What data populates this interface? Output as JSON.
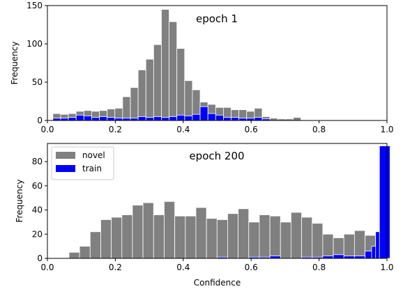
{
  "chart_data": [
    {
      "type": "bar",
      "title": "epoch 1",
      "xlabel": "",
      "ylabel": "Frequency",
      "xlim": [
        0.0,
        1.0
      ],
      "ylim": [
        0,
        150
      ],
      "xticks": [
        "0.0",
        "0.2",
        "0.4",
        "0.6",
        "0.8",
        "1.0"
      ],
      "xtick_values": [
        0.0,
        0.2,
        0.4,
        0.6,
        0.8,
        1.0
      ],
      "yticks": [
        "0",
        "50",
        "100",
        "150"
      ],
      "ytick_values": [
        0,
        50,
        100,
        150
      ],
      "legend": false,
      "bin_width": 0.02282,
      "series": [
        {
          "name": "novel",
          "color": "#808080",
          "bins": [
            {
              "x": 0.0275,
              "y": 9
            },
            {
              "x": 0.0503,
              "y": 8
            },
            {
              "x": 0.0731,
              "y": 9
            },
            {
              "x": 0.096,
              "y": 12
            },
            {
              "x": 0.1188,
              "y": 13
            },
            {
              "x": 0.1416,
              "y": 12
            },
            {
              "x": 0.1645,
              "y": 13
            },
            {
              "x": 0.1873,
              "y": 15
            },
            {
              "x": 0.2101,
              "y": 16
            },
            {
              "x": 0.2329,
              "y": 31
            },
            {
              "x": 0.2558,
              "y": 43
            },
            {
              "x": 0.2786,
              "y": 66
            },
            {
              "x": 0.3014,
              "y": 80
            },
            {
              "x": 0.3243,
              "y": 99
            },
            {
              "x": 0.3471,
              "y": 145
            },
            {
              "x": 0.3699,
              "y": 129
            },
            {
              "x": 0.3927,
              "y": 94
            },
            {
              "x": 0.4156,
              "y": 52
            },
            {
              "x": 0.4384,
              "y": 40
            },
            {
              "x": 0.4612,
              "y": 24
            },
            {
              "x": 0.4841,
              "y": 21
            },
            {
              "x": 0.5069,
              "y": 17
            },
            {
              "x": 0.5297,
              "y": 17
            },
            {
              "x": 0.5525,
              "y": 14
            },
            {
              "x": 0.5754,
              "y": 14
            },
            {
              "x": 0.5982,
              "y": 12
            },
            {
              "x": 0.621,
              "y": 16
            },
            {
              "x": 0.6438,
              "y": 5
            },
            {
              "x": 0.6667,
              "y": 3
            },
            {
              "x": 0.6895,
              "y": 2
            },
            {
              "x": 0.7123,
              "y": 2
            },
            {
              "x": 0.7352,
              "y": 4
            }
          ]
        },
        {
          "name": "train",
          "color": "#0000ff",
          "bins": [
            {
              "x": 0.0275,
              "y": 3
            },
            {
              "x": 0.0503,
              "y": 3
            },
            {
              "x": 0.0731,
              "y": 4
            },
            {
              "x": 0.096,
              "y": 7
            },
            {
              "x": 0.1188,
              "y": 6
            },
            {
              "x": 0.1416,
              "y": 4
            },
            {
              "x": 0.1645,
              "y": 5
            },
            {
              "x": 0.1873,
              "y": 4
            },
            {
              "x": 0.2101,
              "y": 3
            },
            {
              "x": 0.2329,
              "y": 3
            },
            {
              "x": 0.2558,
              "y": 3
            },
            {
              "x": 0.2786,
              "y": 5
            },
            {
              "x": 0.3014,
              "y": 4
            },
            {
              "x": 0.3243,
              "y": 5
            },
            {
              "x": 0.3471,
              "y": 4
            },
            {
              "x": 0.3699,
              "y": 5
            },
            {
              "x": 0.3927,
              "y": 7
            },
            {
              "x": 0.4156,
              "y": 6
            },
            {
              "x": 0.4384,
              "y": 8
            },
            {
              "x": 0.4612,
              "y": 18
            },
            {
              "x": 0.4841,
              "y": 9
            },
            {
              "x": 0.5069,
              "y": 7
            },
            {
              "x": 0.5297,
              "y": 4
            },
            {
              "x": 0.5525,
              "y": 4
            },
            {
              "x": 0.5754,
              "y": 3
            },
            {
              "x": 0.5982,
              "y": 3
            },
            {
              "x": 0.621,
              "y": 4
            },
            {
              "x": 0.6438,
              "y": 2
            }
          ]
        }
      ]
    },
    {
      "type": "bar",
      "title": "epoch 200",
      "xlabel": "Confidence",
      "ylabel": "Frequency",
      "xlim": [
        0.0,
        1.0
      ],
      "ylim": [
        0,
        95
      ],
      "xticks": [
        "0.0",
        "0.2",
        "0.4",
        "0.6",
        "0.8",
        "1.0"
      ],
      "xtick_values": [
        0.0,
        0.2,
        0.4,
        0.6,
        0.8,
        1.0
      ],
      "yticks": [
        "0",
        "20",
        "40",
        "60",
        "80"
      ],
      "ytick_values": [
        0,
        20,
        40,
        60,
        80
      ],
      "legend": true,
      "legend_position": "top-left",
      "bin_width": 0.03114,
      "series": [
        {
          "name": "novel",
          "color": "#808080",
          "bins": [
            {
              "x": 0.0792,
              "y": 5
            },
            {
              "x": 0.1103,
              "y": 10
            },
            {
              "x": 0.1414,
              "y": 22
            },
            {
              "x": 0.1726,
              "y": 32
            },
            {
              "x": 0.2037,
              "y": 34
            },
            {
              "x": 0.2349,
              "y": 36
            },
            {
              "x": 0.266,
              "y": 44
            },
            {
              "x": 0.2971,
              "y": 46
            },
            {
              "x": 0.3283,
              "y": 36
            },
            {
              "x": 0.3594,
              "y": 47
            },
            {
              "x": 0.3906,
              "y": 35
            },
            {
              "x": 0.4217,
              "y": 35
            },
            {
              "x": 0.4528,
              "y": 42
            },
            {
              "x": 0.484,
              "y": 33
            },
            {
              "x": 0.5151,
              "y": 32
            },
            {
              "x": 0.5462,
              "y": 37
            },
            {
              "x": 0.5774,
              "y": 41
            },
            {
              "x": 0.6085,
              "y": 30
            },
            {
              "x": 0.6396,
              "y": 36
            },
            {
              "x": 0.6708,
              "y": 35
            },
            {
              "x": 0.7019,
              "y": 30
            },
            {
              "x": 0.733,
              "y": 38
            },
            {
              "x": 0.7642,
              "y": 34
            },
            {
              "x": 0.7953,
              "y": 29
            },
            {
              "x": 0.8264,
              "y": 20
            },
            {
              "x": 0.8576,
              "y": 17
            },
            {
              "x": 0.8887,
              "y": 20
            },
            {
              "x": 0.9198,
              "y": 23
            },
            {
              "x": 0.951,
              "y": 19
            },
            {
              "x": 0.9821,
              "y": 22
            }
          ]
        },
        {
          "name": "train",
          "color": "#0000ff",
          "bins": [
            {
              "x": 0.5151,
              "y": 1
            },
            {
              "x": 0.6085,
              "y": 1
            },
            {
              "x": 0.6396,
              "y": 1
            },
            {
              "x": 0.6708,
              "y": 2
            },
            {
              "x": 0.7642,
              "y": 1
            },
            {
              "x": 0.7953,
              "y": 1
            },
            {
              "x": 0.8264,
              "y": 2
            },
            {
              "x": 0.8576,
              "y": 3
            },
            {
              "x": 0.8887,
              "y": 2
            },
            {
              "x": 0.9198,
              "y": 2
            },
            {
              "x": 0.951,
              "y": 6
            },
            {
              "x": 0.9703,
              "y": 10
            },
            {
              "x": 0.9821,
              "y": 22
            },
            {
              "x": 0.9934,
              "y": 93
            }
          ]
        }
      ]
    }
  ]
}
